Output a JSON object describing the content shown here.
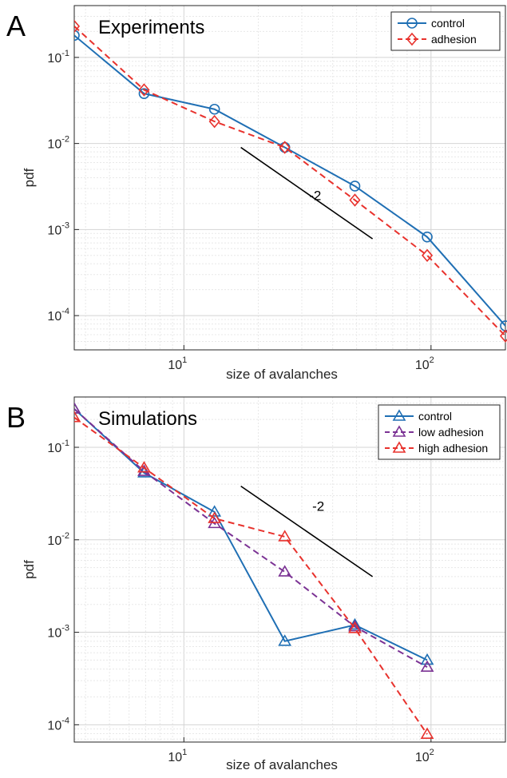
{
  "chart_data": [
    {
      "panel_label": "A",
      "type": "line",
      "title": "Experiments",
      "xlabel": "size of avalanches",
      "ylabel": "pdf",
      "xscale": "log",
      "yscale": "log",
      "xlim": [
        3.6,
        200
      ],
      "ylim": [
        4e-05,
        0.4
      ],
      "grid": true,
      "legend_position": "top-right",
      "x_ticks": [
        {
          "v": 10,
          "base": "10",
          "exp": "1"
        },
        {
          "v": 100,
          "base": "10",
          "exp": "2"
        }
      ],
      "y_ticks": [
        {
          "v": 0.0001,
          "base": "10",
          "exp": "-4"
        },
        {
          "v": 0.001,
          "base": "10",
          "exp": "-3"
        },
        {
          "v": 0.01,
          "base": "10",
          "exp": "-2"
        },
        {
          "v": 0.1,
          "base": "10",
          "exp": "-1"
        }
      ],
      "series": [
        {
          "name": "control",
          "color": "#1f6fb4",
          "dash": "solid",
          "marker": "circle",
          "x": [
            3.6,
            6.9,
            13.3,
            25.6,
            49.2,
            96.5,
            200
          ],
          "y": [
            0.18,
            0.038,
            0.025,
            0.009,
            0.0032,
            0.00082,
            7.6e-05
          ]
        },
        {
          "name": "adhesion",
          "color": "#e8322d",
          "dash": "dashed",
          "marker": "diamond",
          "x": [
            3.6,
            6.9,
            13.3,
            25.6,
            49.2,
            96.5,
            200
          ],
          "y": [
            0.23,
            0.042,
            0.018,
            0.009,
            0.0022,
            0.0005,
            5.8e-05
          ]
        }
      ],
      "annotation": {
        "text": "-2",
        "x1": 17,
        "y1": 0.009,
        "x2": 58,
        "y2": 0.00078,
        "label_x": 34,
        "label_y": 0.0022
      }
    },
    {
      "panel_label": "B",
      "type": "line",
      "title": "Simulations",
      "xlabel": "size of avalanches",
      "ylabel": "pdf",
      "xscale": "log",
      "yscale": "log",
      "xlim": [
        3.6,
        200
      ],
      "ylim": [
        6.5e-05,
        0.35
      ],
      "grid": true,
      "legend_position": "top-right",
      "x_ticks": [
        {
          "v": 10,
          "base": "10",
          "exp": "1"
        },
        {
          "v": 100,
          "base": "10",
          "exp": "2"
        }
      ],
      "y_ticks": [
        {
          "v": 0.0001,
          "base": "10",
          "exp": "-4"
        },
        {
          "v": 0.001,
          "base": "10",
          "exp": "-3"
        },
        {
          "v": 0.01,
          "base": "10",
          "exp": "-2"
        },
        {
          "v": 0.1,
          "base": "10",
          "exp": "-1"
        }
      ],
      "series": [
        {
          "name": "control",
          "color": "#1f6fb4",
          "dash": "solid",
          "marker": "triangle",
          "x": [
            3.6,
            6.9,
            13.3,
            25.6,
            49.2,
            96.5
          ],
          "y": [
            0.26,
            0.053,
            0.02,
            0.0008,
            0.0012,
            0.0005
          ]
        },
        {
          "name": "low adhesion",
          "color": "#7b3294",
          "dash": "dashed",
          "marker": "triangle",
          "x": [
            3.6,
            6.9,
            13.3,
            25.6,
            49.2,
            96.5
          ],
          "y": [
            0.26,
            0.055,
            0.015,
            0.0045,
            0.00115,
            0.00042
          ]
        },
        {
          "name": "high adhesion",
          "color": "#e8322d",
          "dash": "dashed",
          "marker": "triangle",
          "x": [
            3.6,
            6.9,
            13.3,
            25.6,
            49.2,
            96.5
          ],
          "y": [
            0.21,
            0.06,
            0.017,
            0.0108,
            0.0011,
            7.9e-05
          ]
        }
      ],
      "annotation": {
        "text": "-2",
        "x1": 17,
        "y1": 0.038,
        "x2": 58,
        "y2": 0.004,
        "label_x": 35,
        "label_y": 0.0205
      }
    }
  ]
}
